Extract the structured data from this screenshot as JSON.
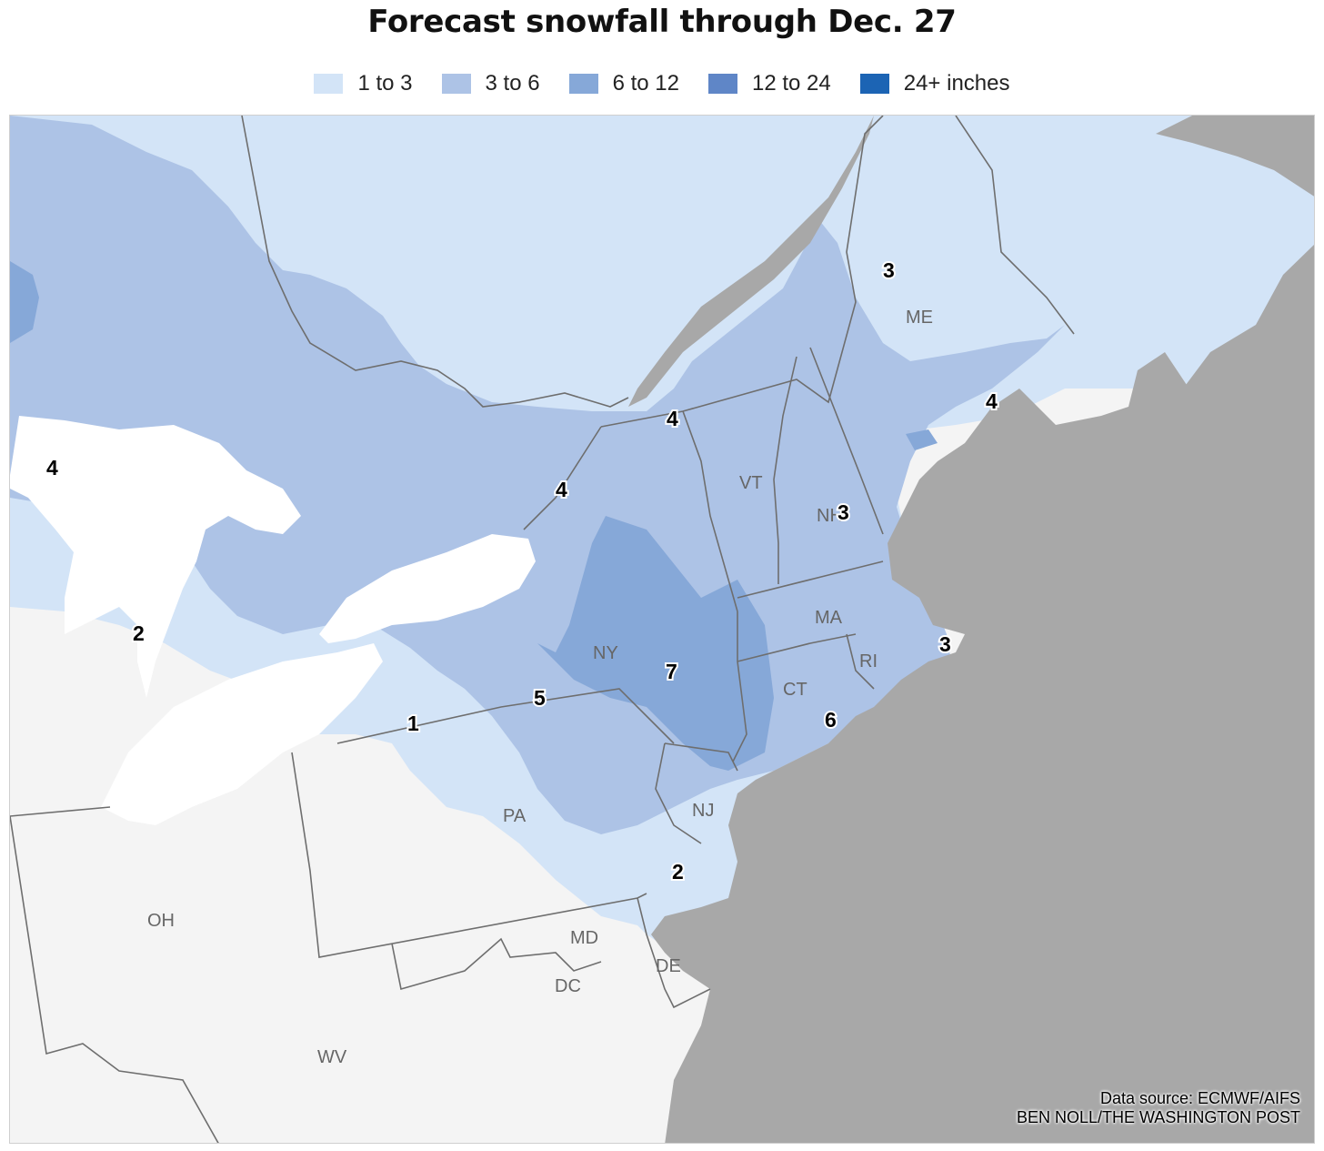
{
  "title": "Forecast snowfall through Dec. 27",
  "legend": [
    {
      "label": "1 to 3",
      "color": "#d3e4f7"
    },
    {
      "label": "3 to 6",
      "color": "#adc3e6"
    },
    {
      "label": "6 to 12",
      "color": "#86a8d8"
    },
    {
      "label": "12 to 24",
      "color": "#5f86c7"
    },
    {
      "label": "24+ inches",
      "color": "#1c64b4"
    }
  ],
  "colors": {
    "ocean": "#a8a8a8",
    "land_no_snow": "#f4f4f4",
    "lakes": "#ffffff",
    "borders": "#6e6e6e"
  },
  "state_labels": [
    "ME",
    "VT",
    "NH",
    "MA",
    "NY",
    "CT",
    "RI",
    "PA",
    "NJ",
    "OH",
    "MD",
    "DE",
    "DC",
    "WV"
  ],
  "value_labels": [
    "3",
    "4",
    "4",
    "4",
    "4",
    "3",
    "2",
    "5",
    "7",
    "3",
    "1",
    "6",
    "2"
  ],
  "credit": {
    "source": "Data source: ECMWF/AIFS",
    "author": "BEN NOLL/THE WASHINGTON POST"
  }
}
